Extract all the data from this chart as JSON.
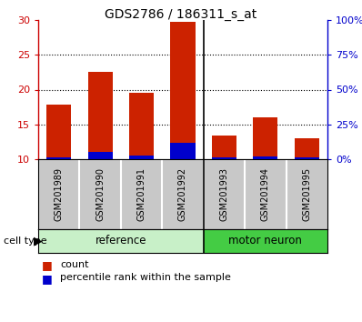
{
  "title": "GDS2786 / 186311_s_at",
  "samples": [
    "GSM201989",
    "GSM201990",
    "GSM201991",
    "GSM201992",
    "GSM201993",
    "GSM201994",
    "GSM201995"
  ],
  "count_values": [
    17.8,
    22.5,
    19.5,
    29.8,
    13.4,
    16.0,
    13.0
  ],
  "percentile_values": [
    1.0,
    5.0,
    2.5,
    12.0,
    1.0,
    2.0,
    1.0
  ],
  "bar_bottom": 10.0,
  "ylim_left": [
    10,
    30
  ],
  "ylim_right": [
    0,
    100
  ],
  "yticks_left": [
    10,
    15,
    20,
    25,
    30
  ],
  "yticks_right": [
    0,
    25,
    50,
    75,
    100
  ],
  "ytick_labels_right": [
    "0%",
    "25%",
    "50%",
    "75%",
    "100%"
  ],
  "left_color": "#cc0000",
  "right_color": "#0000cc",
  "bar_red_color": "#cc2200",
  "bar_blue_color": "#0000cc",
  "cell_types": [
    "reference",
    "motor neuron"
  ],
  "group_divider": 4,
  "ref_color": "#c8f0c8",
  "motor_color": "#44cc44",
  "tick_area_color": "#c8c8c8",
  "cell_type_label": "cell type",
  "legend_count": "count",
  "legend_percentile": "percentile rank within the sample",
  "title_fontsize": 10,
  "label_fontsize": 7,
  "cell_fontsize": 8.5
}
